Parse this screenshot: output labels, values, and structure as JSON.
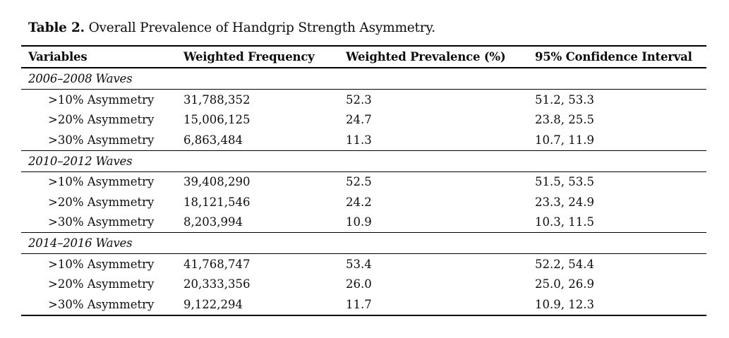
{
  "title": {
    "label": "Table 2.",
    "text": "Overall Prevalence of Handgrip Strength Asymmetry."
  },
  "table": {
    "columns": [
      "Variables",
      "Weighted Frequency",
      "Weighted Prevalence (%)",
      "95% Confidence Interval"
    ],
    "sections": [
      {
        "heading": "2006–2008 Waves",
        "rows": [
          {
            "variable": ">10% Asymmetry",
            "frequency": "31,788,352",
            "prevalence": "52.3",
            "ci": "51.2, 53.3"
          },
          {
            "variable": ">20% Asymmetry",
            "frequency": "15,006,125",
            "prevalence": "24.7",
            "ci": "23.8, 25.5"
          },
          {
            "variable": ">30% Asymmetry",
            "frequency": "6,863,484",
            "prevalence": "11.3",
            "ci": "10.7, 11.9"
          }
        ]
      },
      {
        "heading": "2010–2012 Waves",
        "rows": [
          {
            "variable": ">10% Asymmetry",
            "frequency": "39,408,290",
            "prevalence": "52.5",
            "ci": "51.5, 53.5"
          },
          {
            "variable": ">20% Asymmetry",
            "frequency": "18,121,546",
            "prevalence": "24.2",
            "ci": "23.3, 24.9"
          },
          {
            "variable": ">30% Asymmetry",
            "frequency": "8,203,994",
            "prevalence": "10.9",
            "ci": "10.3, 11.5"
          }
        ]
      },
      {
        "heading": "2014–2016 Waves",
        "rows": [
          {
            "variable": ">10% Asymmetry",
            "frequency": "41,768,747",
            "prevalence": "53.4",
            "ci": "52.2, 54.4"
          },
          {
            "variable": ">20% Asymmetry",
            "frequency": "20,333,356",
            "prevalence": "26.0",
            "ci": "25.0, 26.9"
          },
          {
            "variable": ">30% Asymmetry",
            "frequency": "9,122,294",
            "prevalence": "11.7",
            "ci": "10.9, 12.3"
          }
        ]
      }
    ]
  }
}
